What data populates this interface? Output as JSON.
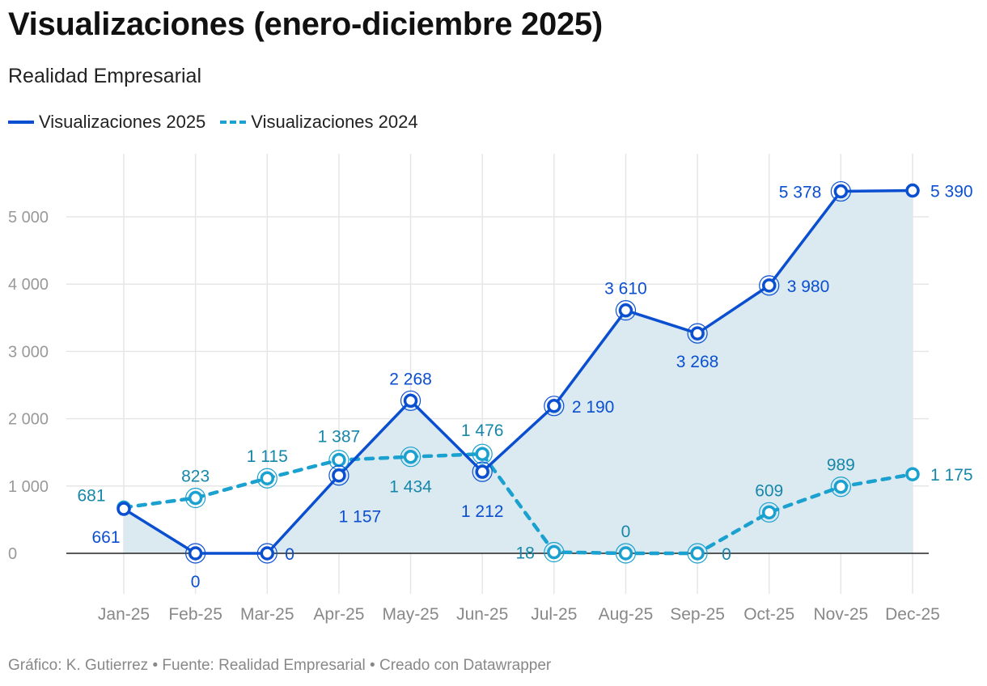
{
  "header": {
    "title": "Visualizaciones (enero-diciembre 2025)",
    "subtitle": "Realidad Empresarial"
  },
  "footer": {
    "credit": "Gráfico: K. Gutierrez",
    "separator": "•",
    "source": "Fuente: Realidad Empresarial",
    "tool": "Creado con Datawrapper"
  },
  "colors": {
    "series_2025": "#0b4fd1",
    "series_2024": "#1ba1cf",
    "area_fill": "#dbeaf1",
    "label_2024": "#1787a9"
  },
  "chart_data": {
    "type": "line",
    "title": "Visualizaciones (enero-diciembre 2025)",
    "subtitle": "Realidad Empresarial",
    "xlabel": "",
    "ylabel": "",
    "ylim": [
      -600,
      5800
    ],
    "yticks": [
      0,
      1000,
      2000,
      3000,
      4000,
      5000
    ],
    "ytick_labels": [
      "0",
      "1 000",
      "2 000",
      "3 000",
      "4 000",
      "5 000"
    ],
    "grid": true,
    "legend_position": "top-left",
    "categories": [
      "Jan-25",
      "Feb-25",
      "Mar-25",
      "Apr-25",
      "May-25",
      "Jun-25",
      "Jul-25",
      "Aug-25",
      "Sep-25",
      "Oct-25",
      "Nov-25",
      "Dec-25"
    ],
    "series": [
      {
        "name": "Visualizaciones 2025",
        "style": "solid",
        "area": true,
        "values": [
          661,
          0,
          0,
          1157,
          2268,
          1212,
          2190,
          3610,
          3268,
          3980,
          5378,
          5390
        ],
        "labels": [
          "661",
          "0",
          "0",
          "1 157",
          "2 268",
          "1 212",
          "2 190",
          "3 610",
          "3 268",
          "3 980",
          "5 378",
          "5 390"
        ]
      },
      {
        "name": "Visualizaciones 2024",
        "style": "dashed",
        "area": false,
        "values": [
          681,
          823,
          1115,
          1387,
          1434,
          1476,
          18,
          0,
          0,
          609,
          989,
          1175
        ],
        "labels": [
          "681",
          "823",
          "1 115",
          "1 387",
          "1 434",
          "1 476",
          "18",
          "0",
          "0",
          "609",
          "989",
          "1 175"
        ]
      }
    ]
  }
}
